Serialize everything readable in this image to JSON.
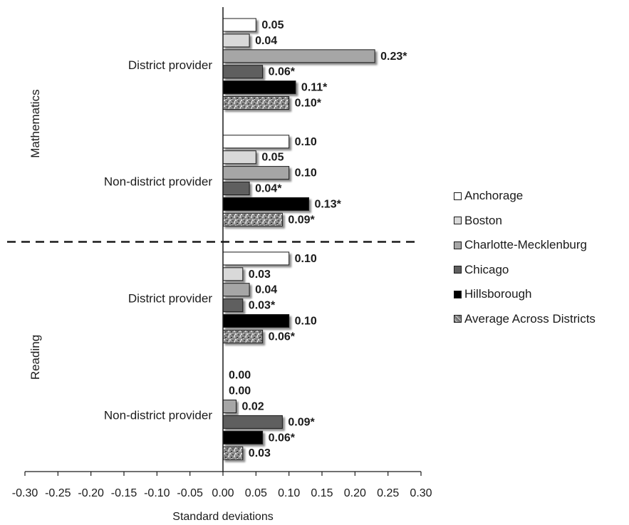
{
  "chart_data": {
    "type": "bar",
    "orientation": "horizontal",
    "xlabel": "Standard deviations",
    "xlim": [
      -0.3,
      0.3
    ],
    "xticks": [
      "-0.30",
      "-0.25",
      "-0.20",
      "-0.15",
      "-0.10",
      "-0.05",
      "0.00",
      "0.05",
      "0.10",
      "0.15",
      "0.20",
      "0.25",
      "0.30"
    ],
    "legend_position": "right",
    "panels": [
      {
        "label": "Mathematics",
        "groups": [
          {
            "label": "District provider",
            "values": [
              0.05,
              0.04,
              0.23,
              0.06,
              0.11,
              0.1
            ],
            "value_labels": [
              "0.05",
              "0.04",
              "0.23*",
              "0.06*",
              "0.11*",
              "0.10*"
            ]
          },
          {
            "label": "Non-district provider",
            "values": [
              0.1,
              0.05,
              0.1,
              0.04,
              0.13,
              0.09
            ],
            "value_labels": [
              "0.10",
              "0.05",
              "0.10",
              "0.04*",
              "0.13*",
              "0.09*"
            ]
          }
        ]
      },
      {
        "label": "Reading",
        "groups": [
          {
            "label": "District provider",
            "values": [
              0.1,
              0.03,
              0.04,
              0.03,
              0.1,
              0.06
            ],
            "value_labels": [
              "0.10",
              "0.03",
              "0.04",
              "0.03*",
              "0.10",
              "0.06*"
            ]
          },
          {
            "label": "Non-district provider",
            "values": [
              0.0,
              0.0,
              0.02,
              0.09,
              0.06,
              0.03
            ],
            "value_labels": [
              "0.00",
              "0.00",
              "0.02",
              "0.09*",
              "0.06*",
              "0.03"
            ]
          }
        ]
      }
    ],
    "series": [
      {
        "name": "Anchorage",
        "color": "#ffffff",
        "pattern": "solid"
      },
      {
        "name": "Boston",
        "color": "#d9d9d9",
        "pattern": "solid"
      },
      {
        "name": "Charlotte-Mecklenburg",
        "color": "#a6a6a6",
        "pattern": "solid"
      },
      {
        "name": "Chicago",
        "color": "#5f5f5f",
        "pattern": "solid"
      },
      {
        "name": "Hillsborough",
        "color": "#000000",
        "pattern": "solid"
      },
      {
        "name": "Average Across Districts",
        "color": "#8c8c8c",
        "pattern": "speckled"
      }
    ]
  }
}
